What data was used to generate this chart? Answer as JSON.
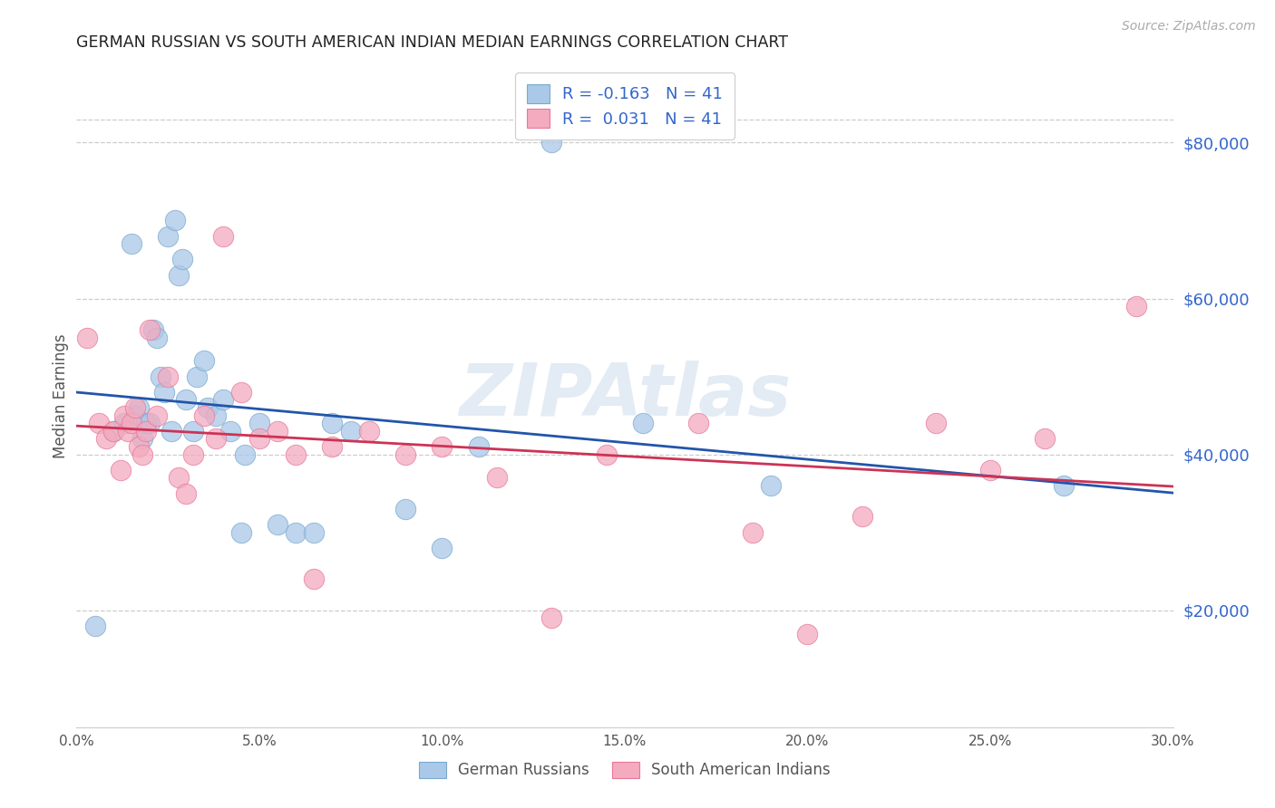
{
  "title": "GERMAN RUSSIAN VS SOUTH AMERICAN INDIAN MEDIAN EARNINGS CORRELATION CHART",
  "source": "Source: ZipAtlas.com",
  "ylabel": "Median Earnings",
  "ytick_values": [
    20000,
    40000,
    60000,
    80000
  ],
  "xmin": 0.0,
  "xmax": 0.3,
  "ymin": 5000,
  "ymax": 90000,
  "legend_label_blue": "German Russians",
  "legend_label_pink": "South American Indians",
  "legend_r_blue": "R = -0.163",
  "legend_n_blue": "N = 41",
  "legend_r_pink": "R =  0.031",
  "legend_n_pink": "N = 41",
  "watermark": "ZIPAtlas",
  "blue_scatter_color": "#aac8e8",
  "pink_scatter_color": "#f4aabf",
  "blue_edge": "#7aaace",
  "pink_edge": "#e87898",
  "blue_line_color": "#2255aa",
  "pink_line_color": "#cc3355",
  "label_color": "#3366cc",
  "title_color": "#222222",
  "blue_scatter_x": [
    0.005,
    0.01,
    0.013,
    0.015,
    0.016,
    0.017,
    0.018,
    0.019,
    0.02,
    0.021,
    0.022,
    0.023,
    0.024,
    0.025,
    0.026,
    0.027,
    0.028,
    0.029,
    0.03,
    0.032,
    0.033,
    0.035,
    0.036,
    0.038,
    0.04,
    0.042,
    0.045,
    0.046,
    0.05,
    0.055,
    0.06,
    0.065,
    0.07,
    0.075,
    0.09,
    0.1,
    0.11,
    0.13,
    0.155,
    0.19,
    0.27
  ],
  "blue_scatter_y": [
    18000,
    43000,
    44000,
    67000,
    45000,
    46000,
    42000,
    44000,
    44000,
    56000,
    55000,
    50000,
    48000,
    68000,
    43000,
    70000,
    63000,
    65000,
    47000,
    43000,
    50000,
    52000,
    46000,
    45000,
    47000,
    43000,
    30000,
    40000,
    44000,
    31000,
    30000,
    30000,
    44000,
    43000,
    33000,
    28000,
    41000,
    80000,
    44000,
    36000,
    36000
  ],
  "pink_scatter_x": [
    0.003,
    0.006,
    0.008,
    0.01,
    0.012,
    0.013,
    0.014,
    0.015,
    0.016,
    0.017,
    0.018,
    0.019,
    0.02,
    0.022,
    0.025,
    0.028,
    0.03,
    0.032,
    0.035,
    0.038,
    0.04,
    0.045,
    0.05,
    0.055,
    0.06,
    0.065,
    0.07,
    0.08,
    0.09,
    0.1,
    0.115,
    0.13,
    0.145,
    0.17,
    0.185,
    0.2,
    0.215,
    0.235,
    0.25,
    0.265,
    0.29
  ],
  "pink_scatter_y": [
    55000,
    44000,
    42000,
    43000,
    38000,
    45000,
    43000,
    44000,
    46000,
    41000,
    40000,
    43000,
    56000,
    45000,
    50000,
    37000,
    35000,
    40000,
    45000,
    42000,
    68000,
    48000,
    42000,
    43000,
    40000,
    24000,
    41000,
    43000,
    40000,
    41000,
    37000,
    19000,
    40000,
    44000,
    30000,
    17000,
    32000,
    44000,
    38000,
    42000,
    59000
  ]
}
